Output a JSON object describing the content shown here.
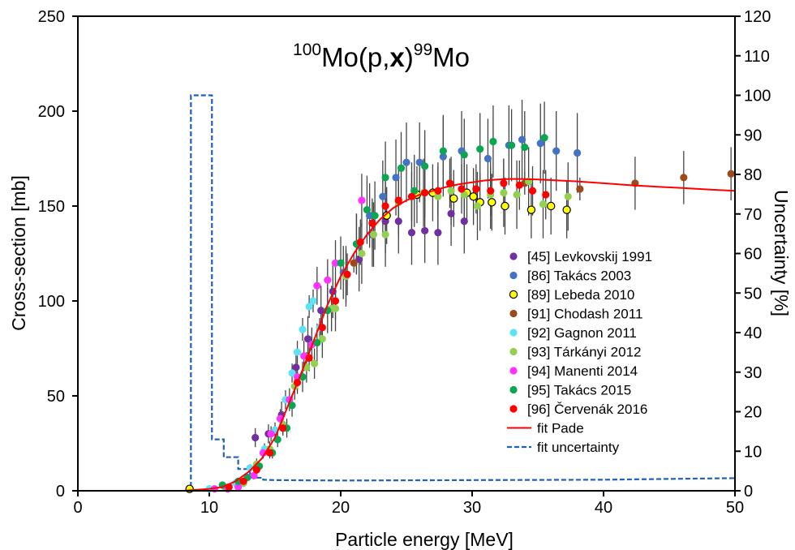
{
  "chart_data": {
    "type": "scatter",
    "title": {
      "mass_target": "100",
      "target": "Mo(p,",
      "particle": "x",
      "close": ")",
      "mass_product": "99",
      "product": "Mo"
    },
    "xlabel": "Particle energy [MeV]",
    "ylabel": "Cross-section [mb]",
    "y2label": "Uncertainty [%]",
    "xlim": [
      0,
      50
    ],
    "ylim": [
      0,
      250
    ],
    "y2lim": [
      0,
      120
    ],
    "x_ticks": [
      0,
      10,
      20,
      30,
      40,
      50
    ],
    "y_ticks": [
      0,
      50,
      100,
      150,
      200,
      250
    ],
    "y2_ticks": [
      0,
      10,
      20,
      30,
      40,
      50,
      60,
      70,
      80,
      90,
      100,
      110,
      120
    ],
    "grid": false,
    "legend_position": "right",
    "series": [
      {
        "name": "[45] Levkovskij 1991",
        "color": "#7030a0",
        "marker": "circle",
        "points": [
          [
            13.5,
            28
          ],
          [
            14.5,
            30
          ],
          [
            15.5,
            40
          ],
          [
            16.6,
            65
          ],
          [
            17.5,
            80
          ],
          [
            18.5,
            95
          ],
          [
            19.4,
            105
          ],
          [
            20.4,
            113
          ],
          [
            21.4,
            122
          ],
          [
            22.4,
            135
          ],
          [
            23.4,
            142
          ],
          [
            24.4,
            142
          ],
          [
            25.4,
            136
          ],
          [
            26.4,
            137
          ],
          [
            27.4,
            136
          ],
          [
            28.4,
            146
          ],
          [
            29.4,
            142
          ]
        ],
        "errors": [
          5,
          5,
          7,
          9,
          12,
          13,
          14,
          16,
          17,
          17,
          17,
          17,
          17,
          17,
          17,
          17,
          17
        ]
      },
      {
        "name": "[86] Takács  2003",
        "color": "#4472c4",
        "marker": "circle",
        "points": [
          [
            20.2,
            115
          ],
          [
            21.2,
            130
          ],
          [
            22.2,
            145
          ],
          [
            23.2,
            155
          ],
          [
            24.2,
            165
          ],
          [
            25.0,
            173
          ],
          [
            26.0,
            173
          ],
          [
            27.8,
            176
          ],
          [
            29.2,
            179
          ],
          [
            31.2,
            175
          ],
          [
            32.8,
            182
          ],
          [
            33.8,
            185
          ],
          [
            35.2,
            183
          ],
          [
            36.4,
            179
          ],
          [
            38.0,
            178
          ]
        ],
        "errors": [
          14,
          16,
          17,
          19,
          20,
          21,
          21,
          21,
          21,
          21,
          21,
          21,
          21,
          21,
          21
        ]
      },
      {
        "name": "[89] Lebeda  2010",
        "color": "#ffff00",
        "marker": "ring",
        "points": [
          [
            8.5,
            1
          ],
          [
            23.5,
            145
          ],
          [
            25.8,
            156
          ],
          [
            27.0,
            157
          ],
          [
            28.6,
            154
          ],
          [
            29.6,
            157
          ],
          [
            30.1,
            155
          ],
          [
            30.6,
            152
          ],
          [
            31.5,
            152
          ],
          [
            32.5,
            150
          ],
          [
            34.5,
            148
          ],
          [
            36.0,
            150
          ],
          [
            37.2,
            148
          ]
        ],
        "errors": [
          0,
          15,
          15,
          15,
          15,
          15,
          15,
          15,
          15,
          15,
          15,
          15,
          15
        ]
      },
      {
        "name": "[91] Chodash 2011",
        "color": "#9c4a1a",
        "marker": "circle",
        "points": [
          [
            21.0,
            120
          ],
          [
            34.0,
            162
          ],
          [
            38.2,
            159
          ],
          [
            42.4,
            162
          ],
          [
            46.1,
            165
          ],
          [
            49.7,
            167
          ]
        ],
        "errors": [
          5,
          6,
          6,
          14,
          14,
          14
        ]
      },
      {
        "name": "[92] Gagnon 2011",
        "color": "#5ce4f4",
        "marker": "circle",
        "points": [
          [
            10.0,
            1
          ],
          [
            12.0,
            4
          ],
          [
            13.1,
            12
          ],
          [
            14.2,
            22
          ],
          [
            15.0,
            32
          ],
          [
            15.8,
            48
          ],
          [
            16.3,
            62
          ],
          [
            16.7,
            73
          ],
          [
            17.1,
            85
          ],
          [
            17.6,
            97
          ],
          [
            17.9,
            100
          ],
          [
            18.4,
            86
          ]
        ],
        "errors": [
          0,
          0,
          2,
          3,
          4,
          5,
          5,
          6,
          6,
          6,
          6,
          5
        ]
      },
      {
        "name": "[93] Tárkányi 2012",
        "color": "#92d050",
        "marker": "circle",
        "points": [
          [
            11.2,
            2
          ],
          [
            12.6,
            4
          ],
          [
            13.6,
            14
          ],
          [
            14.6,
            22
          ],
          [
            15.6,
            35
          ],
          [
            16.5,
            55
          ],
          [
            17.4,
            65
          ],
          [
            18.0,
            67
          ],
          [
            18.6,
            80
          ],
          [
            19.3,
            96
          ],
          [
            19.6,
            96
          ],
          [
            20.4,
            113
          ],
          [
            21.6,
            125
          ],
          [
            22.5,
            135
          ],
          [
            23.4,
            135
          ],
          [
            24.4,
            152
          ],
          [
            25.4,
            155
          ],
          [
            26.3,
            157
          ],
          [
            27.4,
            155
          ],
          [
            28.4,
            158
          ],
          [
            29.4,
            156
          ],
          [
            30.4,
            150
          ],
          [
            31.4,
            156
          ],
          [
            32.4,
            157
          ],
          [
            33.4,
            156
          ],
          [
            34.3,
            163
          ],
          [
            35.4,
            151
          ],
          [
            37.3,
            155
          ]
        ],
        "errors": [
          1,
          2,
          3,
          4,
          5,
          7,
          8,
          8,
          10,
          12,
          12,
          14,
          16,
          17,
          17,
          18,
          18,
          18,
          18,
          18,
          18,
          18,
          18,
          18,
          18,
          18,
          18,
          18
        ]
      },
      {
        "name": "[94] Manenti 2014",
        "color": "#ff33ff",
        "marker": "circle",
        "points": [
          [
            10.4,
            1
          ],
          [
            11.4,
            1
          ],
          [
            12.2,
            2
          ],
          [
            13.4,
            8
          ],
          [
            14.1,
            20
          ],
          [
            14.7,
            30
          ],
          [
            15.4,
            38
          ],
          [
            16.1,
            48
          ],
          [
            16.7,
            60
          ],
          [
            17.2,
            71
          ],
          [
            17.8,
            77
          ],
          [
            18.2,
            108
          ],
          [
            19.0,
            111
          ],
          [
            19.6,
            120
          ],
          [
            21.6,
            153
          ]
        ],
        "errors": [
          0,
          0,
          0,
          2,
          3,
          4,
          5,
          6,
          7,
          8,
          9,
          10,
          11,
          12,
          14
        ]
      },
      {
        "name": "[95] Takács 2015",
        "color": "#0aa651",
        "marker": "circle",
        "points": [
          [
            11.0,
            3
          ],
          [
            12.2,
            5
          ],
          [
            12.9,
            7
          ],
          [
            13.8,
            13
          ],
          [
            14.8,
            20
          ],
          [
            15.2,
            27
          ],
          [
            15.9,
            33
          ],
          [
            16.3,
            45
          ],
          [
            17.1,
            60
          ],
          [
            18.2,
            78
          ],
          [
            19.0,
            95
          ],
          [
            20.0,
            120
          ],
          [
            21.2,
            130
          ],
          [
            22.0,
            148
          ],
          [
            22.6,
            145
          ],
          [
            23.4,
            165
          ],
          [
            24.6,
            170
          ],
          [
            25.6,
            158
          ],
          [
            26.4,
            171
          ],
          [
            27.8,
            179
          ],
          [
            29.4,
            177
          ],
          [
            30.6,
            180
          ],
          [
            31.6,
            184
          ],
          [
            33.0,
            182
          ],
          [
            34.0,
            181
          ],
          [
            35.5,
            186
          ]
        ],
        "errors": [
          1,
          1,
          2,
          2,
          3,
          4,
          5,
          6,
          8,
          10,
          12,
          14,
          16,
          18,
          18,
          19,
          19,
          19,
          19,
          19,
          19,
          19,
          19,
          19,
          19,
          19
        ]
      },
      {
        "name": "[96] Červenák 2016",
        "color": "#ff0000",
        "marker": "circle",
        "points": [
          [
            11.5,
            2
          ],
          [
            12.6,
            5
          ],
          [
            13.6,
            11
          ],
          [
            14.6,
            20
          ],
          [
            15.6,
            33
          ],
          [
            16.7,
            57
          ],
          [
            17.6,
            70
          ],
          [
            18.6,
            86
          ],
          [
            19.6,
            100
          ],
          [
            20.5,
            114
          ],
          [
            21.5,
            131
          ],
          [
            22.4,
            141
          ],
          [
            23.4,
            150
          ],
          [
            24.4,
            153
          ],
          [
            25.4,
            155
          ],
          [
            26.4,
            157
          ],
          [
            27.4,
            158
          ],
          [
            28.3,
            162
          ],
          [
            29.2,
            159
          ],
          [
            30.3,
            159
          ],
          [
            31.4,
            158
          ],
          [
            32.4,
            162
          ],
          [
            33.6,
            161
          ],
          [
            34.6,
            158
          ],
          [
            35.6,
            156
          ]
        ],
        "errors": [
          1,
          1,
          2,
          3,
          4,
          6,
          7,
          9,
          10,
          11,
          12,
          13,
          13,
          13,
          13,
          13,
          13,
          13,
          13,
          13,
          13,
          13,
          13,
          13,
          13
        ]
      }
    ],
    "fit_pade": {
      "name": "fit Pade",
      "color": "#ff0000",
      "x": [
        8,
        9,
        10,
        11,
        12,
        13,
        14,
        15,
        16,
        17,
        18,
        19,
        20,
        21,
        22,
        23,
        24,
        25,
        26,
        27,
        28,
        29,
        30,
        31,
        32,
        33,
        34,
        35,
        36,
        38,
        40,
        42,
        44,
        46,
        48,
        50
      ],
      "y": [
        0,
        0.5,
        1,
        2,
        5,
        10,
        17,
        28,
        45,
        62,
        80,
        98,
        113,
        125,
        135,
        143,
        149,
        153,
        156,
        158,
        160,
        161.5,
        162.5,
        163.5,
        164,
        164.3,
        164.2,
        164,
        163.7,
        163,
        162,
        161,
        160.2,
        159.5,
        158.7,
        158
      ]
    },
    "fit_uncertainty": {
      "name": "fit uncertainty",
      "color": "#1f5fbf",
      "axis": "right",
      "x": [
        8.2,
        8.6,
        8.6,
        10.2,
        10.2,
        11.1,
        11.1,
        12.2,
        12.2,
        13.1,
        13.1,
        14.1,
        14.1,
        15.0,
        20.0,
        30.0,
        40.0,
        50.0
      ],
      "y": [
        0.5,
        0.5,
        100,
        100,
        13,
        13,
        8.5,
        8.5,
        5.5,
        5.5,
        3.3,
        3.3,
        2.8,
        2.7,
        2.6,
        2.7,
        2.8,
        3.2
      ]
    }
  }
}
